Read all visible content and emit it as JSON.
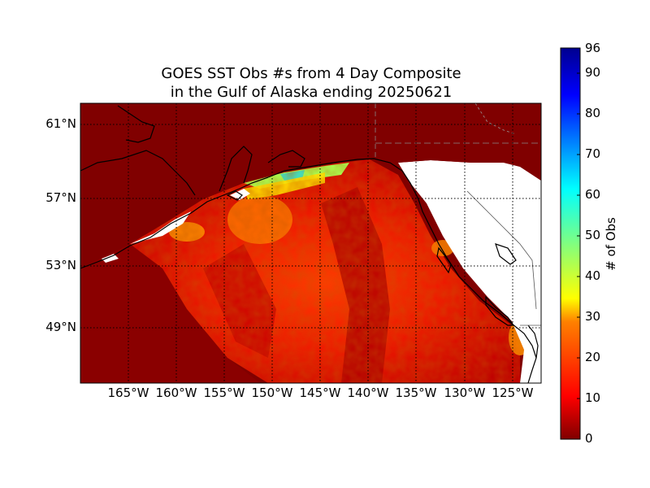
{
  "title": [
    "GOES SST Obs #s from 4 Day Composite",
    "in the Gulf of Alaska ending 20250621"
  ],
  "map": {
    "lat_ticks": [
      "61°N",
      "57°N",
      "53°N",
      "49°N"
    ],
    "lon_ticks": [
      "165°W",
      "160°W",
      "155°W",
      "150°W",
      "145°W",
      "140°W",
      "135°W",
      "130°W",
      "125°W"
    ],
    "colors": {
      "land": "#800000",
      "coast": "#000000",
      "grid": "#000000",
      "missing": "#ffffff"
    }
  },
  "colorbar": {
    "label": "# of Obs",
    "min": 0,
    "max": 96,
    "ticks": [
      "0",
      "10",
      "20",
      "30",
      "40",
      "50",
      "60",
      "70",
      "80",
      "90",
      "96"
    ],
    "colormap": "jet",
    "colors": [
      "#800000",
      "#ff0000",
      "#ff8000",
      "#ffff00",
      "#80ff80",
      "#00ffff",
      "#0080ff",
      "#0000ff",
      "#00008f"
    ]
  }
}
